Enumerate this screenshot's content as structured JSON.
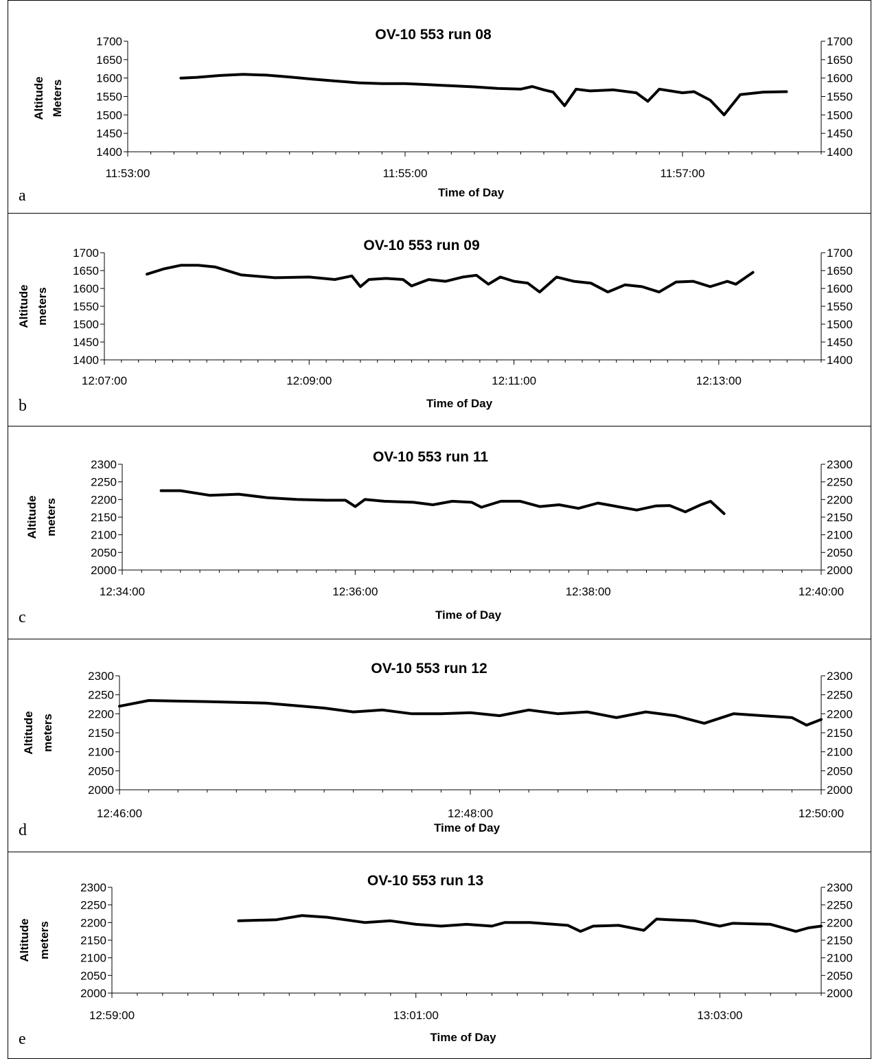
{
  "chart_data": [
    {
      "type": "line",
      "panel_letter": "a",
      "title": "OV-10 553 run 08",
      "xlabel": "Time of Day",
      "ylabel_lines": [
        "Altitude",
        "Meters"
      ],
      "ylim": [
        1400,
        1700
      ],
      "yticks": [
        1400,
        1450,
        1500,
        1550,
        1600,
        1650,
        1700
      ],
      "xlim": [
        "11:53:00",
        "11:58:00"
      ],
      "xtick_labels": [
        "11:53:00",
        "11:55:00",
        "11:57:00"
      ],
      "series": [
        {
          "x": [
            "11:53:23",
            "11:53:30",
            "11:53:40",
            "11:53:50",
            "11:54:00",
            "11:54:10",
            "11:54:20",
            "11:54:30",
            "11:54:40",
            "11:54:50",
            "11:55:00",
            "11:55:10",
            "11:55:20",
            "11:55:30",
            "11:55:40",
            "11:55:50",
            "11:55:55",
            "11:56:00",
            "11:56:04",
            "11:56:09",
            "11:56:14",
            "11:56:20",
            "11:56:30",
            "11:56:40",
            "11:56:45",
            "11:56:50",
            "11:57:00",
            "11:57:05",
            "11:57:12",
            "11:57:18",
            "11:57:25",
            "11:57:35",
            "11:57:45"
          ],
          "y": [
            1600,
            1602,
            1607,
            1610,
            1608,
            1603,
            1597,
            1592,
            1587,
            1585,
            1585,
            1582,
            1579,
            1576,
            1572,
            1570,
            1577,
            1568,
            1562,
            1525,
            1570,
            1565,
            1568,
            1560,
            1537,
            1570,
            1560,
            1563,
            1540,
            1500,
            1555,
            1562,
            1563
          ]
        }
      ]
    },
    {
      "type": "line",
      "panel_letter": "b",
      "title": "OV-10 553 run 09",
      "xlabel": "Time of Day",
      "ylabel_lines": [
        "Altitude",
        "meters"
      ],
      "ylim": [
        1400,
        1700
      ],
      "yticks": [
        1400,
        1450,
        1500,
        1550,
        1600,
        1650,
        1700
      ],
      "xlim": [
        "12:07:00",
        "12:14:00"
      ],
      "xtick_labels": [
        "12:07:00",
        "12:09:00",
        "12:11:00",
        "12:13:00"
      ],
      "series": [
        {
          "x": [
            "12:07:25",
            "12:07:35",
            "12:07:45",
            "12:07:55",
            "12:08:05",
            "12:08:20",
            "12:08:40",
            "12:09:00",
            "12:09:15",
            "12:09:25",
            "12:09:30",
            "12:09:35",
            "12:09:45",
            "12:09:55",
            "12:10:00",
            "12:10:10",
            "12:10:20",
            "12:10:30",
            "12:10:38",
            "12:10:45",
            "12:10:52",
            "12:11:00",
            "12:11:08",
            "12:11:15",
            "12:11:25",
            "12:11:35",
            "12:11:45",
            "12:11:55",
            "12:12:05",
            "12:12:15",
            "12:12:25",
            "12:12:35",
            "12:12:45",
            "12:12:55",
            "12:13:05",
            "12:13:10",
            "12:13:20"
          ],
          "y": [
            1640,
            1655,
            1665,
            1665,
            1660,
            1638,
            1630,
            1632,
            1625,
            1635,
            1605,
            1625,
            1628,
            1625,
            1607,
            1625,
            1620,
            1632,
            1637,
            1612,
            1632,
            1620,
            1615,
            1590,
            1632,
            1620,
            1615,
            1590,
            1610,
            1605,
            1590,
            1618,
            1620,
            1605,
            1620,
            1612,
            1645
          ]
        }
      ]
    },
    {
      "type": "line",
      "panel_letter": "c",
      "title": "OV-10 553 run 11",
      "xlabel": "Time of Day",
      "ylabel_lines": [
        "Altitude",
        "meters"
      ],
      "ylim": [
        2000,
        2300
      ],
      "yticks": [
        2000,
        2050,
        2100,
        2150,
        2200,
        2250,
        2300
      ],
      "xlim": [
        "12:34:00",
        "12:40:00"
      ],
      "xtick_labels": [
        "12:34:00",
        "12:36:00",
        "12:38:00",
        "12:40:00"
      ],
      "series": [
        {
          "x": [
            "12:34:20",
            "12:34:30",
            "12:34:45",
            "12:35:00",
            "12:35:15",
            "12:35:30",
            "12:35:45",
            "12:35:55",
            "12:36:00",
            "12:36:05",
            "12:36:15",
            "12:36:30",
            "12:36:40",
            "12:36:50",
            "12:37:00",
            "12:37:05",
            "12:37:15",
            "12:37:25",
            "12:37:35",
            "12:37:45",
            "12:37:55",
            "12:38:05",
            "12:38:15",
            "12:38:25",
            "12:38:35",
            "12:38:42",
            "12:38:50",
            "12:38:58",
            "12:39:03",
            "12:39:10"
          ],
          "y": [
            2225,
            2225,
            2212,
            2215,
            2205,
            2200,
            2198,
            2198,
            2180,
            2200,
            2195,
            2192,
            2185,
            2195,
            2192,
            2178,
            2195,
            2195,
            2180,
            2185,
            2175,
            2190,
            2180,
            2170,
            2182,
            2183,
            2165,
            2185,
            2195,
            2160
          ]
        }
      ]
    },
    {
      "type": "line",
      "panel_letter": "d",
      "title": "OV-10 553 run 12",
      "xlabel": "Time of Day",
      "ylabel_lines": [
        "Altitude",
        "meters"
      ],
      "ylim": [
        2000,
        2300
      ],
      "yticks": [
        2000,
        2050,
        2100,
        2150,
        2200,
        2250,
        2300
      ],
      "xlim": [
        "12:46:00",
        "12:50:00"
      ],
      "xtick_labels": [
        "12:46:00",
        "12:48:00",
        "12:50:00"
      ],
      "series": [
        {
          "x": [
            "12:46:00",
            "12:46:10",
            "12:46:30",
            "12:46:50",
            "12:47:10",
            "12:47:20",
            "12:47:30",
            "12:47:40",
            "12:47:50",
            "12:48:00",
            "12:48:10",
            "12:48:20",
            "12:48:30",
            "12:48:40",
            "12:48:50",
            "12:49:00",
            "12:49:10",
            "12:49:20",
            "12:49:30",
            "12:49:40",
            "12:49:50",
            "12:49:55",
            "12:50:00"
          ],
          "y": [
            2220,
            2235,
            2232,
            2228,
            2215,
            2205,
            2210,
            2200,
            2200,
            2203,
            2195,
            2210,
            2200,
            2205,
            2190,
            2205,
            2195,
            2175,
            2200,
            2195,
            2190,
            2170,
            2185
          ]
        }
      ]
    },
    {
      "type": "line",
      "panel_letter": "e",
      "title": "OV-10 553 run 13",
      "xlabel": "Time of Day",
      "ylabel_lines": [
        "Altitude",
        "meters"
      ],
      "ylim": [
        2000,
        2300
      ],
      "yticks": [
        2000,
        2050,
        2100,
        2150,
        2200,
        2250,
        2300
      ],
      "xlim": [
        "12:59:00",
        "13:03:40"
      ],
      "xtick_labels": [
        "12:59:00",
        "13:01:00",
        "13:03:00"
      ],
      "series": [
        {
          "x": [
            "12:59:50",
            "13:00:05",
            "13:00:15",
            "13:00:25",
            "13:00:40",
            "13:00:50",
            "13:01:00",
            "13:01:10",
            "13:01:20",
            "13:01:30",
            "13:01:35",
            "13:01:45",
            "13:02:00",
            "13:02:05",
            "13:02:10",
            "13:02:20",
            "13:02:30",
            "13:02:35",
            "13:02:40",
            "13:02:50",
            "13:03:00",
            "13:03:05",
            "13:03:20",
            "13:03:30",
            "13:03:35",
            "13:03:40"
          ],
          "y": [
            2205,
            2208,
            2220,
            2215,
            2200,
            2205,
            2195,
            2190,
            2195,
            2190,
            2200,
            2200,
            2192,
            2175,
            2190,
            2192,
            2178,
            2210,
            2208,
            2205,
            2190,
            2198,
            2195,
            2175,
            2185,
            2190
          ]
        }
      ]
    }
  ]
}
